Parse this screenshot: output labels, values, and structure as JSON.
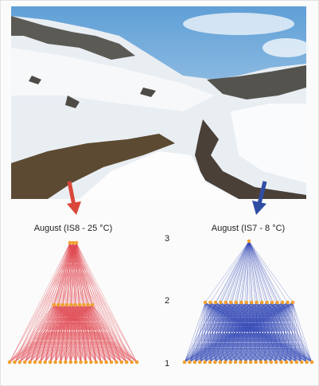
{
  "panels": [
    {
      "label": "August (IS8 - 25 °C)"
    },
    {
      "label": "August (IS7 - 8 °C)"
    }
  ],
  "levels": [
    "3",
    "2",
    "1"
  ]
}
